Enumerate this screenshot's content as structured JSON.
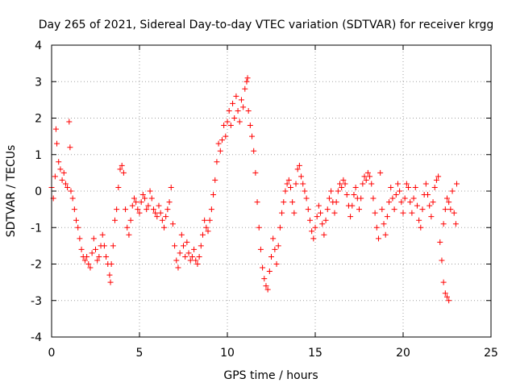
{
  "chart_data": {
    "type": "scatter",
    "title": "Day 265 of 2021, Sidereal Day-to-day VTEC variation (SDTVAR) for receiver krgg",
    "xlabel": "GPS time / hours",
    "ylabel": "SDTVAR / TECUs",
    "xlim": [
      0,
      25
    ],
    "ylim": [
      -4,
      4
    ],
    "xticks": [
      0,
      5,
      10,
      15,
      20,
      25
    ],
    "yticks": [
      -4,
      -3,
      -2,
      -1,
      0,
      1,
      2,
      3,
      4
    ],
    "xtick_labels": [
      "0",
      "5",
      "10",
      "15",
      "20",
      "25"
    ],
    "ytick_labels": [
      "-4",
      "-3",
      "-2",
      "-1",
      "0",
      "1",
      "2",
      "3",
      "4"
    ],
    "grid": true,
    "marker": "+",
    "color": "#ff0000",
    "series": [
      {
        "name": "receiver krgg",
        "points": [
          [
            0.0,
            0.1
          ],
          [
            0.1,
            -0.2
          ],
          [
            0.2,
            0.4
          ],
          [
            0.25,
            1.7
          ],
          [
            0.3,
            1.3
          ],
          [
            0.4,
            0.8
          ],
          [
            0.5,
            0.6
          ],
          [
            0.6,
            0.3
          ],
          [
            0.7,
            0.5
          ],
          [
            0.8,
            0.2
          ],
          [
            0.9,
            0.1
          ],
          [
            1.0,
            1.9
          ],
          [
            1.05,
            1.2
          ],
          [
            1.1,
            0.0
          ],
          [
            1.2,
            -0.2
          ],
          [
            1.3,
            -0.5
          ],
          [
            1.4,
            -0.8
          ],
          [
            1.5,
            -1.0
          ],
          [
            1.6,
            -1.3
          ],
          [
            1.7,
            -1.6
          ],
          [
            1.8,
            -1.8
          ],
          [
            1.9,
            -1.9
          ],
          [
            2.0,
            -1.8
          ],
          [
            2.1,
            -2.0
          ],
          [
            2.2,
            -2.1
          ],
          [
            2.3,
            -1.7
          ],
          [
            2.4,
            -1.3
          ],
          [
            2.5,
            -1.6
          ],
          [
            2.6,
            -1.9
          ],
          [
            2.7,
            -1.8
          ],
          [
            2.8,
            -1.5
          ],
          [
            2.9,
            -1.2
          ],
          [
            3.0,
            -1.5
          ],
          [
            3.1,
            -1.8
          ],
          [
            3.2,
            -2.0
          ],
          [
            3.3,
            -2.3
          ],
          [
            3.35,
            -2.5
          ],
          [
            3.4,
            -2.0
          ],
          [
            3.5,
            -1.5
          ],
          [
            3.6,
            -0.8
          ],
          [
            3.7,
            -0.5
          ],
          [
            3.8,
            0.1
          ],
          [
            3.9,
            0.6
          ],
          [
            4.0,
            0.7
          ],
          [
            4.1,
            0.5
          ],
          [
            4.2,
            -0.5
          ],
          [
            4.3,
            -1.0
          ],
          [
            4.4,
            -1.2
          ],
          [
            4.5,
            -0.8
          ],
          [
            4.6,
            -0.4
          ],
          [
            4.7,
            -0.2
          ],
          [
            4.8,
            -0.3
          ],
          [
            4.9,
            -0.5
          ],
          [
            5.0,
            -0.6
          ],
          [
            5.1,
            -0.3
          ],
          [
            5.2,
            -0.1
          ],
          [
            5.3,
            -0.2
          ],
          [
            5.4,
            -0.5
          ],
          [
            5.5,
            -0.4
          ],
          [
            5.6,
            0.0
          ],
          [
            5.7,
            -0.2
          ],
          [
            5.8,
            -0.5
          ],
          [
            5.9,
            -0.6
          ],
          [
            6.0,
            -0.7
          ],
          [
            6.1,
            -0.4
          ],
          [
            6.2,
            -0.6
          ],
          [
            6.3,
            -0.8
          ],
          [
            6.4,
            -1.0
          ],
          [
            6.5,
            -0.7
          ],
          [
            6.6,
            -0.5
          ],
          [
            6.7,
            -0.3
          ],
          [
            6.8,
            0.1
          ],
          [
            6.9,
            -0.9
          ],
          [
            7.0,
            -1.5
          ],
          [
            7.1,
            -1.9
          ],
          [
            7.2,
            -2.1
          ],
          [
            7.3,
            -1.7
          ],
          [
            7.4,
            -1.2
          ],
          [
            7.5,
            -1.5
          ],
          [
            7.6,
            -1.8
          ],
          [
            7.7,
            -1.4
          ],
          [
            7.8,
            -1.7
          ],
          [
            7.9,
            -1.9
          ],
          [
            8.0,
            -1.8
          ],
          [
            8.1,
            -1.6
          ],
          [
            8.2,
            -1.9
          ],
          [
            8.3,
            -2.0
          ],
          [
            8.4,
            -1.8
          ],
          [
            8.5,
            -1.5
          ],
          [
            8.6,
            -1.2
          ],
          [
            8.7,
            -0.8
          ],
          [
            8.8,
            -1.0
          ],
          [
            8.9,
            -1.1
          ],
          [
            9.0,
            -0.8
          ],
          [
            9.1,
            -0.5
          ],
          [
            9.2,
            -0.1
          ],
          [
            9.3,
            0.3
          ],
          [
            9.4,
            0.8
          ],
          [
            9.5,
            1.3
          ],
          [
            9.6,
            1.1
          ],
          [
            9.7,
            1.4
          ],
          [
            9.8,
            1.8
          ],
          [
            9.9,
            1.5
          ],
          [
            10.0,
            1.9
          ],
          [
            10.1,
            2.2
          ],
          [
            10.2,
            1.8
          ],
          [
            10.3,
            2.4
          ],
          [
            10.4,
            2.0
          ],
          [
            10.5,
            2.6
          ],
          [
            10.6,
            2.2
          ],
          [
            10.7,
            1.9
          ],
          [
            10.8,
            2.5
          ],
          [
            10.9,
            2.3
          ],
          [
            11.0,
            2.8
          ],
          [
            11.1,
            3.0
          ],
          [
            11.15,
            3.1
          ],
          [
            11.2,
            2.2
          ],
          [
            11.3,
            1.8
          ],
          [
            11.4,
            1.5
          ],
          [
            11.5,
            1.1
          ],
          [
            11.6,
            0.5
          ],
          [
            11.7,
            -0.3
          ],
          [
            11.8,
            -1.0
          ],
          [
            11.9,
            -1.6
          ],
          [
            12.0,
            -2.1
          ],
          [
            12.1,
            -2.4
          ],
          [
            12.2,
            -2.6
          ],
          [
            12.3,
            -2.7
          ],
          [
            12.4,
            -2.2
          ],
          [
            12.5,
            -1.8
          ],
          [
            12.6,
            -1.3
          ],
          [
            12.7,
            -1.6
          ],
          [
            12.8,
            -2.0
          ],
          [
            12.9,
            -1.5
          ],
          [
            13.0,
            -1.0
          ],
          [
            13.1,
            -0.6
          ],
          [
            13.2,
            -0.3
          ],
          [
            13.3,
            0.0
          ],
          [
            13.4,
            0.2
          ],
          [
            13.5,
            0.3
          ],
          [
            13.6,
            0.1
          ],
          [
            13.7,
            -0.3
          ],
          [
            13.8,
            -0.6
          ],
          [
            13.9,
            0.2
          ],
          [
            14.0,
            0.6
          ],
          [
            14.1,
            0.7
          ],
          [
            14.2,
            0.4
          ],
          [
            14.3,
            0.2
          ],
          [
            14.4,
            0.0
          ],
          [
            14.5,
            -0.2
          ],
          [
            14.6,
            -0.5
          ],
          [
            14.7,
            -0.8
          ],
          [
            14.8,
            -1.1
          ],
          [
            14.9,
            -1.3
          ],
          [
            15.0,
            -1.0
          ],
          [
            15.1,
            -0.7
          ],
          [
            15.2,
            -0.4
          ],
          [
            15.3,
            -0.6
          ],
          [
            15.4,
            -0.9
          ],
          [
            15.5,
            -1.2
          ],
          [
            15.6,
            -0.8
          ],
          [
            15.7,
            -0.5
          ],
          [
            15.8,
            -0.2
          ],
          [
            15.9,
            0.0
          ],
          [
            16.0,
            -0.3
          ],
          [
            16.1,
            -0.6
          ],
          [
            16.2,
            -0.3
          ],
          [
            16.3,
            0.0
          ],
          [
            16.4,
            0.2
          ],
          [
            16.5,
            0.1
          ],
          [
            16.6,
            0.3
          ],
          [
            16.7,
            0.2
          ],
          [
            16.8,
            -0.1
          ],
          [
            16.9,
            -0.4
          ],
          [
            17.0,
            -0.7
          ],
          [
            17.1,
            -0.4
          ],
          [
            17.2,
            -0.1
          ],
          [
            17.3,
            0.1
          ],
          [
            17.4,
            -0.2
          ],
          [
            17.5,
            -0.5
          ],
          [
            17.6,
            -0.2
          ],
          [
            17.7,
            0.2
          ],
          [
            17.8,
            0.4
          ],
          [
            17.9,
            0.3
          ],
          [
            18.0,
            0.5
          ],
          [
            18.1,
            0.4
          ],
          [
            18.2,
            0.2
          ],
          [
            18.3,
            -0.2
          ],
          [
            18.4,
            -0.6
          ],
          [
            18.5,
            -1.0
          ],
          [
            18.6,
            -1.3
          ],
          [
            18.7,
            0.5
          ],
          [
            18.8,
            -0.5
          ],
          [
            18.9,
            -0.9
          ],
          [
            19.0,
            -1.2
          ],
          [
            19.1,
            -0.7
          ],
          [
            19.2,
            -0.3
          ],
          [
            19.3,
            0.1
          ],
          [
            19.4,
            -0.2
          ],
          [
            19.5,
            -0.5
          ],
          [
            19.6,
            -0.1
          ],
          [
            19.7,
            0.2
          ],
          [
            19.8,
            0.0
          ],
          [
            19.9,
            -0.3
          ],
          [
            20.0,
            -0.6
          ],
          [
            20.1,
            -0.2
          ],
          [
            20.2,
            0.2
          ],
          [
            20.3,
            0.1
          ],
          [
            20.4,
            -0.3
          ],
          [
            20.5,
            -0.6
          ],
          [
            20.6,
            -0.2
          ],
          [
            20.7,
            0.1
          ],
          [
            20.8,
            -0.4
          ],
          [
            20.9,
            -0.8
          ],
          [
            21.0,
            -1.0
          ],
          [
            21.1,
            -0.5
          ],
          [
            21.2,
            -0.1
          ],
          [
            21.3,
            0.2
          ],
          [
            21.4,
            -0.1
          ],
          [
            21.5,
            -0.4
          ],
          [
            21.6,
            -0.7
          ],
          [
            21.7,
            -0.3
          ],
          [
            21.8,
            0.1
          ],
          [
            21.9,
            0.3
          ],
          [
            22.0,
            0.4
          ],
          [
            22.1,
            -1.4
          ],
          [
            22.2,
            -1.9
          ],
          [
            22.3,
            -2.5
          ],
          [
            22.4,
            -2.8
          ],
          [
            22.5,
            -2.9
          ],
          [
            22.6,
            -3.0
          ],
          [
            22.3,
            -0.9
          ],
          [
            22.4,
            -0.5
          ],
          [
            22.5,
            -0.2
          ],
          [
            22.6,
            -0.3
          ],
          [
            22.7,
            -0.5
          ],
          [
            22.8,
            0.0
          ],
          [
            22.9,
            -0.6
          ],
          [
            23.0,
            -0.9
          ],
          [
            23.05,
            0.2
          ]
        ]
      }
    ]
  }
}
